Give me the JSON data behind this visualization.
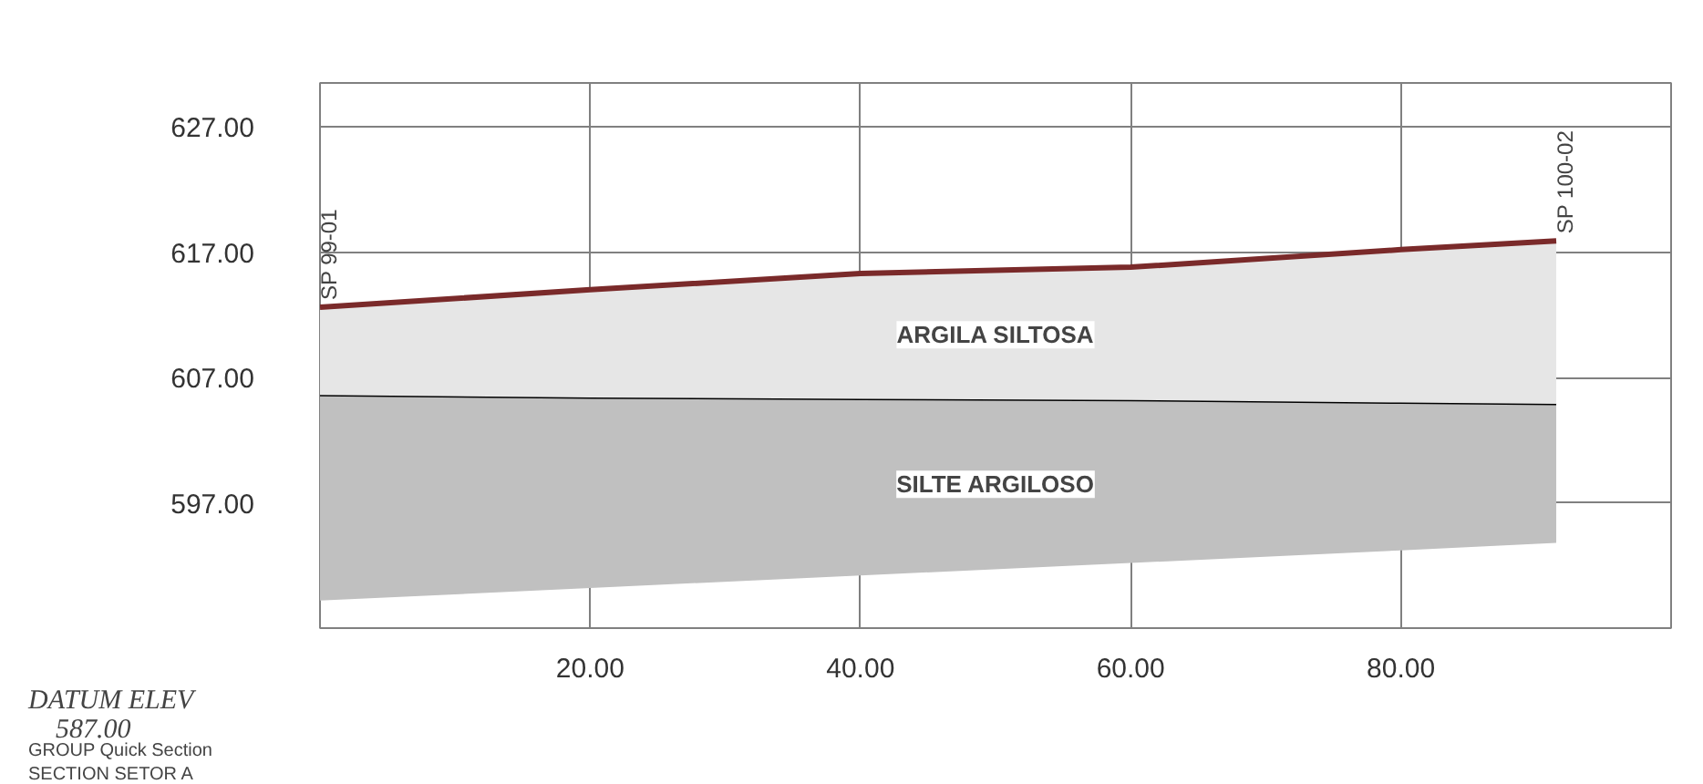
{
  "chart_data": {
    "type": "line",
    "x": [
      0,
      20,
      40,
      60,
      80,
      91.5
    ],
    "series": [
      {
        "name": "SILTE ARGILOSO",
        "color": "#000000",
        "values": [
          605.6,
          605.4,
          605.3,
          605.2,
          605.0,
          604.9
        ],
        "lower": [
          589.2,
          590.2,
          591.2,
          592.2,
          593.2,
          593.8
        ],
        "upper": [
          605.6,
          605.4,
          605.3,
          605.2,
          605.0,
          604.9
        ]
      },
      {
        "name": "ARGILA SILTOSA",
        "color": "#7a2a2a",
        "values": [
          612.6,
          614.0,
          615.3,
          615.8,
          617.2,
          617.9
        ],
        "lower": [
          605.6,
          605.4,
          605.3,
          605.2,
          605.0,
          604.9
        ],
        "upper": [
          612.6,
          614.0,
          615.3,
          615.8,
          617.2,
          617.9
        ]
      }
    ],
    "xlim": [
      0,
      100
    ],
    "ylim": [
      587,
      630.5
    ],
    "xticks": [
      {
        "value": 20,
        "label": "20.00"
      },
      {
        "value": 40,
        "label": "40.00"
      },
      {
        "value": 60,
        "label": "60.00"
      },
      {
        "value": 80,
        "label": "80.00"
      }
    ],
    "yticks": [
      {
        "value": 597,
        "label": "597.00"
      },
      {
        "value": 607,
        "label": "607.00"
      },
      {
        "value": 617,
        "label": "617.00"
      },
      {
        "value": 627,
        "label": "627.00"
      }
    ],
    "grid": true,
    "annotations": [
      {
        "text": "SP 99-01",
        "x": 0,
        "y": 612.6
      },
      {
        "text": "SP 100-02",
        "x": 91.5,
        "y": 617.9
      },
      "DATUM ELEV",
      "587.00",
      "GROUP   Quick Section",
      "SECTION   SETOR A"
    ]
  }
}
